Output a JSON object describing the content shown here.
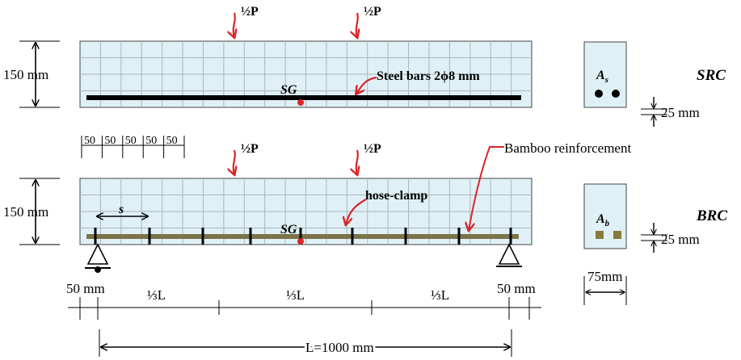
{
  "colors": {
    "beam_fill": "#dff1f6",
    "grid": "#a9b6bc",
    "arrow": "#d9262a",
    "bamboo": "#7b7348",
    "steel": "#000000"
  },
  "loads": {
    "left": "½P",
    "right": "½P"
  },
  "src": {
    "height_label": "150 mm",
    "sg_label": "SG",
    "steel_label": "Steel bars 2ϕ8 mm",
    "section_area": "A",
    "section_area_sub": "s",
    "cover_label": "25 mm",
    "beam_type": "SRC"
  },
  "spacing_labels": [
    "50",
    "50",
    "50",
    "50",
    "50"
  ],
  "brc": {
    "height_label": "150 mm",
    "sg_label": "SG",
    "clamp_label": "hose-clamp",
    "bamboo_label": "Bamboo reinforcement",
    "spacing_symbol": "s",
    "section_area": "A",
    "section_area_sub": "b",
    "cover_label": "25 mm",
    "width_label": "75mm",
    "beam_type": "BRC"
  },
  "span": {
    "left_overhang": "50 mm",
    "right_overhang": "50 mm",
    "thirds": [
      "⅓L",
      "⅓L",
      "⅓L"
    ],
    "total": "L=1000 mm"
  }
}
